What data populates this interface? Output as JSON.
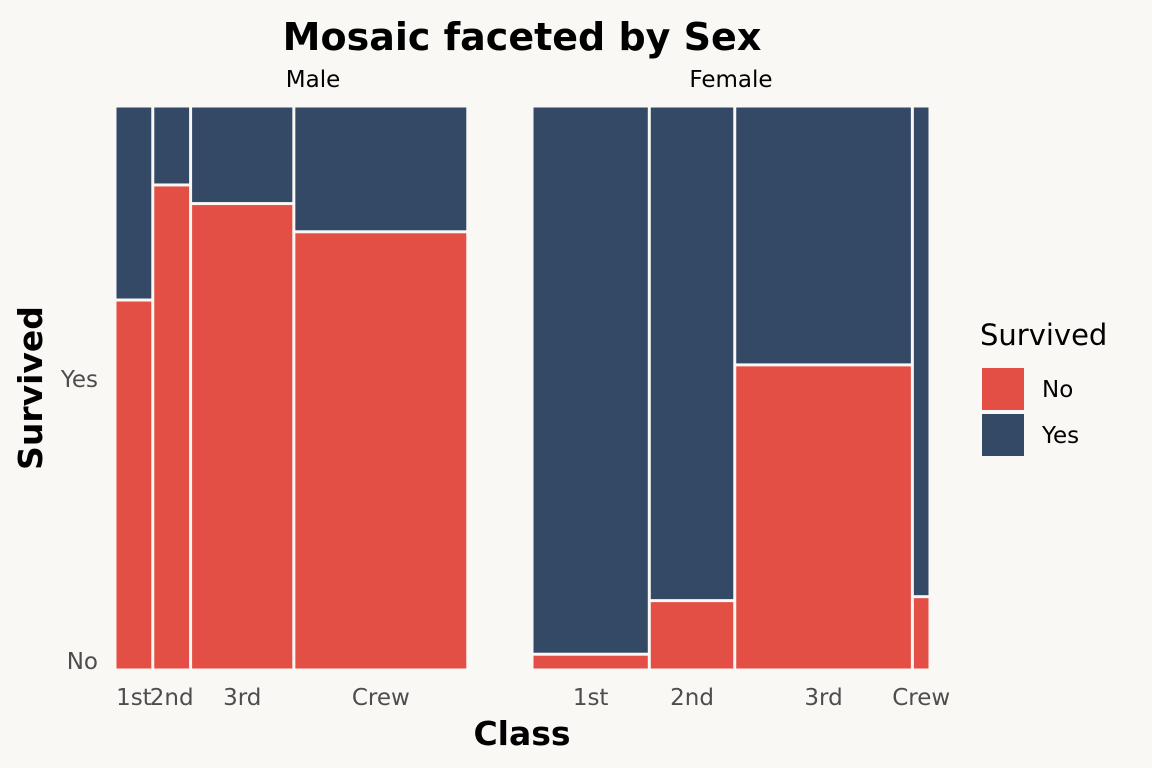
{
  "colors": {
    "background": "#f9f8f5",
    "no": "#e34f44",
    "yes": "#344966",
    "tile_border": "#ffffff",
    "text": "#000000",
    "tick_text": "#4d4d4d"
  },
  "chart_data": {
    "type": "mosaic",
    "title": "Mosaic faceted by Sex",
    "xlabel": "Class",
    "ylabel": "Survived",
    "y_ticks": [
      "No",
      "Yes"
    ],
    "grid": false,
    "legend": {
      "title": "Survived",
      "placement": "right",
      "entries": [
        {
          "label": "No",
          "color_key": "no"
        },
        {
          "label": "Yes",
          "color_key": "yes"
        }
      ]
    },
    "facets": [
      {
        "name": "Male",
        "columns": [
          {
            "class": "1st",
            "share": 0.0954,
            "no": 0.656,
            "yes": 0.344
          },
          {
            "class": "2nd",
            "share": 0.0955,
            "no": 0.86,
            "yes": 0.14
          },
          {
            "class": "3rd",
            "share": 0.2607,
            "no": 0.827,
            "yes": 0.173
          },
          {
            "class": "Crew",
            "share": 0.4393,
            "no": 0.777,
            "yes": 0.223
          }
        ]
      },
      {
        "name": "Female",
        "columns": [
          {
            "class": "1st",
            "share": 0.2947,
            "no": 0.028,
            "yes": 0.972
          },
          {
            "class": "2nd",
            "share": 0.2147,
            "no": 0.123,
            "yes": 0.877
          },
          {
            "class": "3rd",
            "share": 0.4463,
            "no": 0.541,
            "yes": 0.459
          },
          {
            "class": "Crew",
            "share": 0.0443,
            "no": 0.13,
            "yes": 0.87
          }
        ]
      }
    ]
  }
}
